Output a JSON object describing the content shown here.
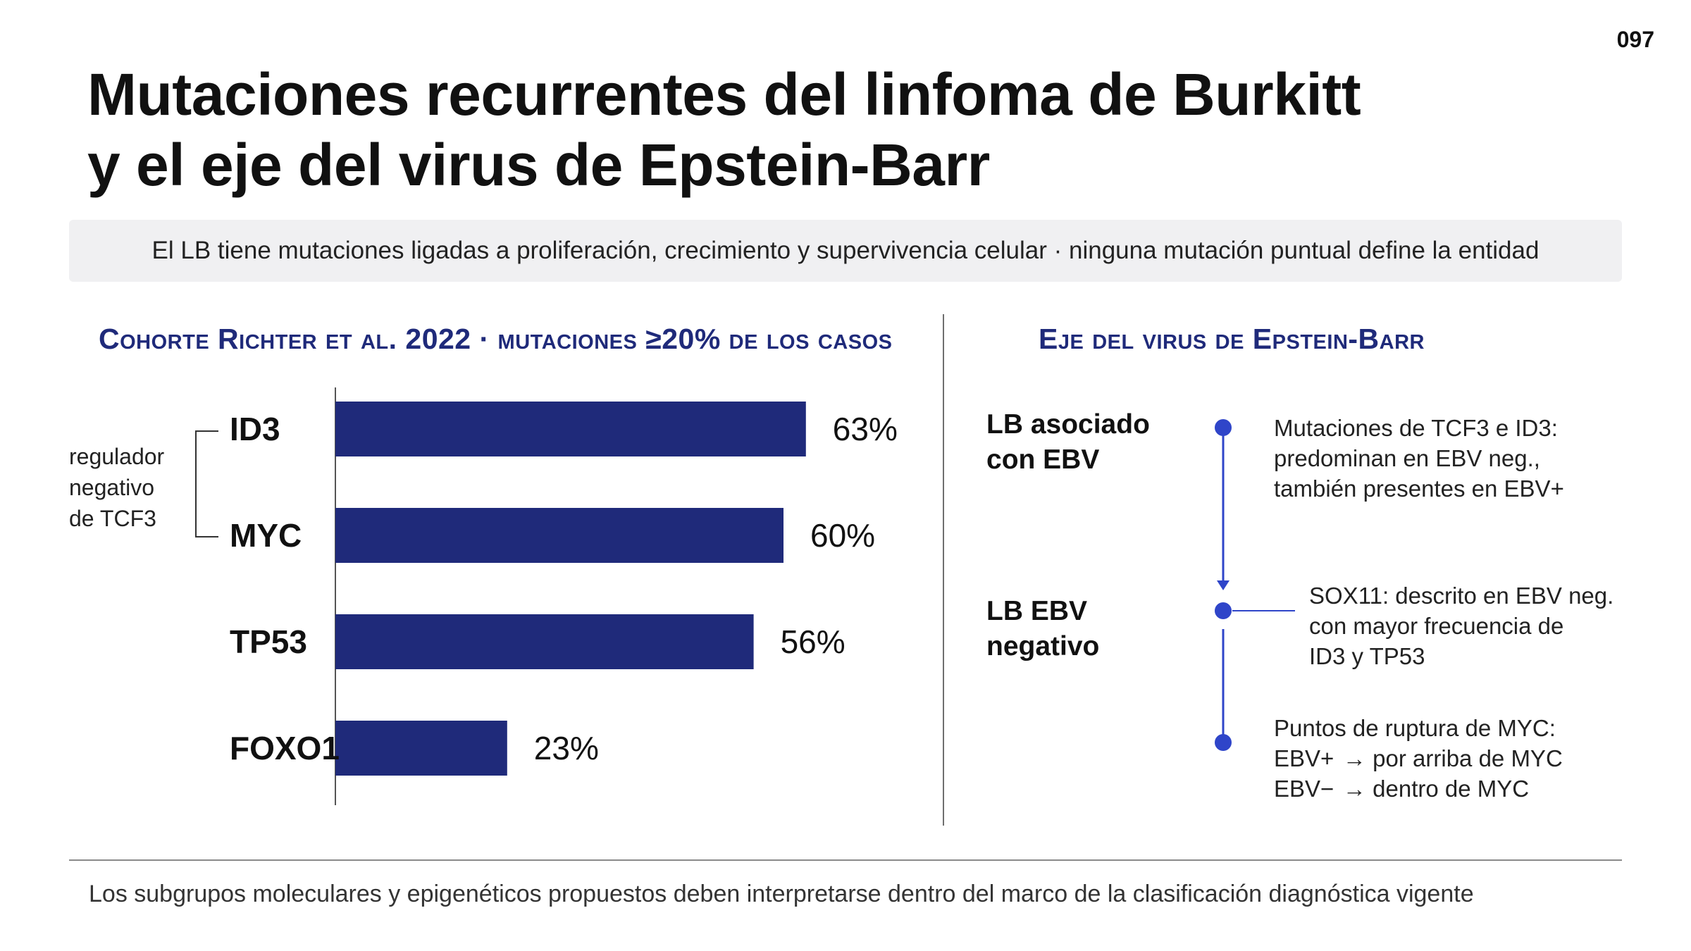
{
  "page_number": "097",
  "title": {
    "line1": "Mutaciones recurrentes del linfoma de Burkitt",
    "line2": "y el eje del virus de Epstein-Barr"
  },
  "summary": "El LB tiene mutaciones ligadas a proliferación, crecimiento y supervivencia celular · ninguna mutación puntual define la entidad",
  "left_section": {
    "title": "Cohorte Richter et al. 2022 · mutaciones ≥20% de los casos",
    "bracket_label": {
      "line1": "regulador",
      "line2": "negativo",
      "line3": "de TCF3"
    }
  },
  "chart_data": {
    "type": "bar",
    "orientation": "horizontal",
    "title": "Cohorte Richter et al. 2022 · mutaciones ≥20% de los casos",
    "categories": [
      "ID3",
      "MYC",
      "TP53",
      "FOXO1"
    ],
    "values": [
      63,
      60,
      56,
      23
    ],
    "value_labels": [
      "63%",
      "60%",
      "56%",
      "23%"
    ],
    "xlim": [
      0,
      100
    ],
    "bar_color": "#1f2a7a",
    "grid": false,
    "legend": "none",
    "xlabel": "",
    "ylabel": ""
  },
  "right_section": {
    "title": "Eje del virus de Epstein-Barr",
    "labels": [
      {
        "line1": "LB asociado",
        "line2": "con EBV"
      },
      {
        "line1": "LB EBV",
        "line2": "negativo"
      }
    ],
    "notes": [
      {
        "line1": "Mutaciones de TCF3 e ID3:",
        "line2": "predominan en EBV neg.,",
        "line3": "también presentes en EBV+"
      },
      {
        "line1": "SOX11: descrito en EBV neg.",
        "line2": "con mayor frecuencia de",
        "line3": "ID3 y TP53"
      },
      {
        "line1": "Puntos de ruptura de MYC:",
        "row2_src": "EBV+",
        "row2_arrow": "→",
        "row2_text": "por arriba de MYC",
        "row3_src": "EBV−",
        "row3_arrow": "→",
        "row3_text": "dentro de MYC"
      }
    ],
    "accent_color": "#2f45c9"
  },
  "footer": "Los subgrupos moleculares y epigenéticos propuestos deben interpretarse dentro del marco de la clasificación diagnóstica vigente"
}
